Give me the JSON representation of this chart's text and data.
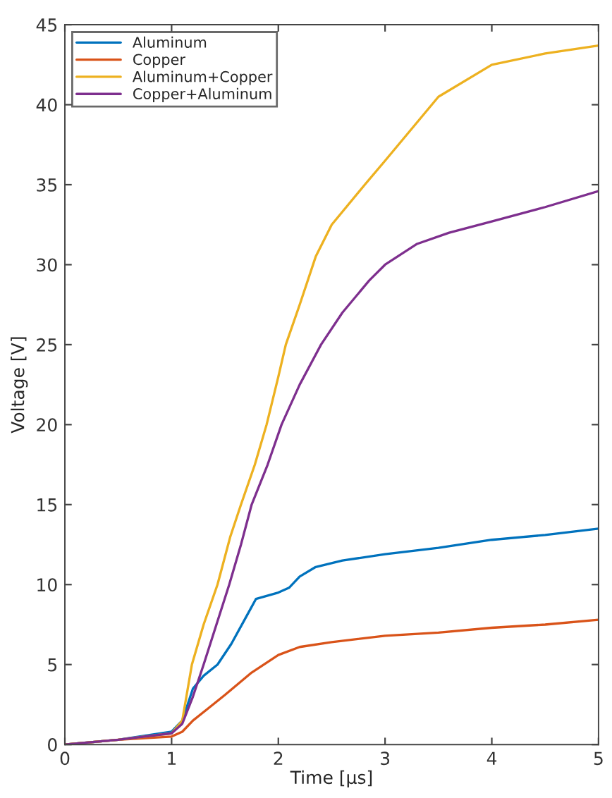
{
  "chart_data": {
    "type": "line",
    "xlabel": "Time [µs]",
    "ylabel": "Voltage [V]",
    "xlim": [
      0,
      5
    ],
    "ylim": [
      0,
      45
    ],
    "xticks": [
      0,
      1,
      2,
      3,
      4,
      5
    ],
    "yticks": [
      0,
      5,
      10,
      15,
      20,
      25,
      30,
      35,
      40,
      45
    ],
    "grid": false,
    "legend": "top left",
    "marker": "none",
    "line_style": "solid",
    "series": [
      {
        "name": "Aluminum",
        "color": "#0072bd",
        "x": [
          0,
          0.5,
          1.0,
          1.1,
          1.2,
          1.3,
          1.43,
          1.56,
          1.7,
          1.79,
          2.0,
          2.1,
          2.2,
          2.35,
          2.6,
          3.0,
          3.5,
          4.0,
          4.5,
          5.0
        ],
        "values": [
          0,
          0.3,
          0.8,
          1.5,
          3.5,
          4.3,
          5,
          6.3,
          8.0,
          9.1,
          9.5,
          9.8,
          10.5,
          11.1,
          11.5,
          11.9,
          12.3,
          12.8,
          13.1,
          13.5
        ]
      },
      {
        "name": "Copper",
        "color": "#d95319",
        "x": [
          0,
          0.5,
          1.0,
          1.1,
          1.2,
          1.35,
          1.5,
          1.75,
          2.0,
          2.2,
          2.5,
          3.0,
          3.5,
          4.0,
          4.5,
          5.0
        ],
        "values": [
          0,
          0.3,
          0.5,
          0.8,
          1.5,
          2.3,
          3.1,
          4.5,
          5.6,
          6.1,
          6.4,
          6.8,
          7.0,
          7.3,
          7.5,
          7.8
        ]
      },
      {
        "name": "Aluminum+Copper",
        "color": "#edb120",
        "x": [
          0,
          0.5,
          1.0,
          1.1,
          1.19,
          1.3,
          1.43,
          1.55,
          1.65,
          1.78,
          1.89,
          2.0,
          2.07,
          2.2,
          2.35,
          2.5,
          2.81,
          3.0,
          3.5,
          4.0,
          4.5,
          5.0
        ],
        "values": [
          0,
          0.3,
          0.7,
          1.5,
          5,
          7.5,
          10,
          13,
          15,
          17.5,
          20,
          23,
          25,
          27.5,
          30.5,
          32.5,
          35,
          36.5,
          40.5,
          42.5,
          43.2,
          43.7
        ]
      },
      {
        "name": "Copper+Aluminum",
        "color": "#7e2f8e",
        "x": [
          0,
          0.5,
          1.0,
          1.1,
          1.2,
          1.3,
          1.42,
          1.54,
          1.65,
          1.75,
          1.9,
          2.03,
          2.2,
          2.4,
          2.6,
          2.85,
          3.0,
          3.3,
          3.6,
          4.0,
          4.5,
          5.0
        ],
        "values": [
          0,
          0.3,
          0.7,
          1.3,
          3,
          5,
          7.5,
          10,
          12.5,
          15,
          17.5,
          20,
          22.5,
          25,
          27,
          29,
          30,
          31.3,
          32,
          32.7,
          33.6,
          34.6
        ]
      }
    ]
  }
}
